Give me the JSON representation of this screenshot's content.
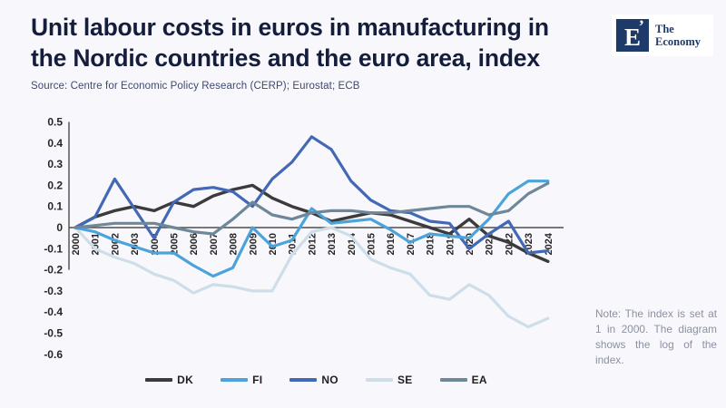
{
  "header": {
    "title": "Unit labour costs in euros in manufacturing in the Nordic countries and the euro area, index",
    "source": "Source: Centre for Economic Policy Research (CERP); Eurostat; ECB"
  },
  "logo": {
    "letter": "E",
    "mark": "’",
    "name_line1": "The",
    "name_line2": "Economy"
  },
  "note": {
    "text": "Note: The index is set at 1 in 2000. The diagram shows the log of the index."
  },
  "chart_data": {
    "type": "line",
    "title": "Unit labour costs in euros in manufacturing in the Nordic countries and the euro area, index",
    "x": [
      2000,
      2001,
      2002,
      2003,
      2004,
      2005,
      2006,
      2007,
      2008,
      2009,
      2010,
      2011,
      2012,
      2013,
      2014,
      2015,
      2016,
      2017,
      2018,
      2019,
      2020,
      2021,
      2022,
      2023,
      2024
    ],
    "ylim": [
      -0.6,
      0.5
    ],
    "ytick_step": 0.1,
    "grid": false,
    "legend_position": "bottom",
    "series": [
      {
        "name": "DK",
        "color": "#3b3b3b",
        "values": [
          0,
          0.05,
          0.08,
          0.1,
          0.08,
          0.12,
          0.1,
          0.15,
          0.18,
          0.2,
          0.14,
          0.1,
          0.07,
          0.03,
          0.05,
          0.07,
          0.06,
          0.03,
          0.0,
          -0.03,
          0.04,
          -0.04,
          -0.07,
          -0.12,
          -0.16
        ]
      },
      {
        "name": "FI",
        "color": "#4ba3da",
        "values": [
          0,
          -0.02,
          -0.06,
          -0.09,
          -0.12,
          -0.12,
          -0.18,
          -0.23,
          -0.19,
          0.0,
          -0.09,
          -0.06,
          0.09,
          0.02,
          0.03,
          0.04,
          -0.01,
          -0.07,
          -0.03,
          -0.04,
          -0.05,
          0.04,
          0.16,
          0.22,
          0.22
        ]
      },
      {
        "name": "NO",
        "color": "#4368b5",
        "values": [
          0,
          0.05,
          0.23,
          0.09,
          -0.05,
          0.12,
          0.18,
          0.19,
          0.17,
          0.1,
          0.23,
          0.31,
          0.43,
          0.37,
          0.22,
          0.13,
          0.08,
          0.07,
          0.03,
          0.02,
          -0.1,
          -0.03,
          0.03,
          -0.12,
          -0.11
        ]
      },
      {
        "name": "SE",
        "color": "#cddee9",
        "values": [
          0,
          -0.1,
          -0.14,
          -0.17,
          -0.22,
          -0.25,
          -0.31,
          -0.27,
          -0.28,
          -0.3,
          -0.3,
          -0.13,
          -0.02,
          0.0,
          -0.04,
          -0.15,
          -0.19,
          -0.22,
          -0.32,
          -0.34,
          -0.27,
          -0.32,
          -0.42,
          -0.47,
          -0.43
        ]
      },
      {
        "name": "EA",
        "color": "#6e8899",
        "values": [
          0,
          0.01,
          0.02,
          0.02,
          0.02,
          0.0,
          -0.02,
          -0.03,
          0.04,
          0.12,
          0.06,
          0.04,
          0.07,
          0.08,
          0.08,
          0.07,
          0.07,
          0.08,
          0.09,
          0.1,
          0.1,
          0.06,
          0.08,
          0.16,
          0.21
        ]
      }
    ]
  }
}
